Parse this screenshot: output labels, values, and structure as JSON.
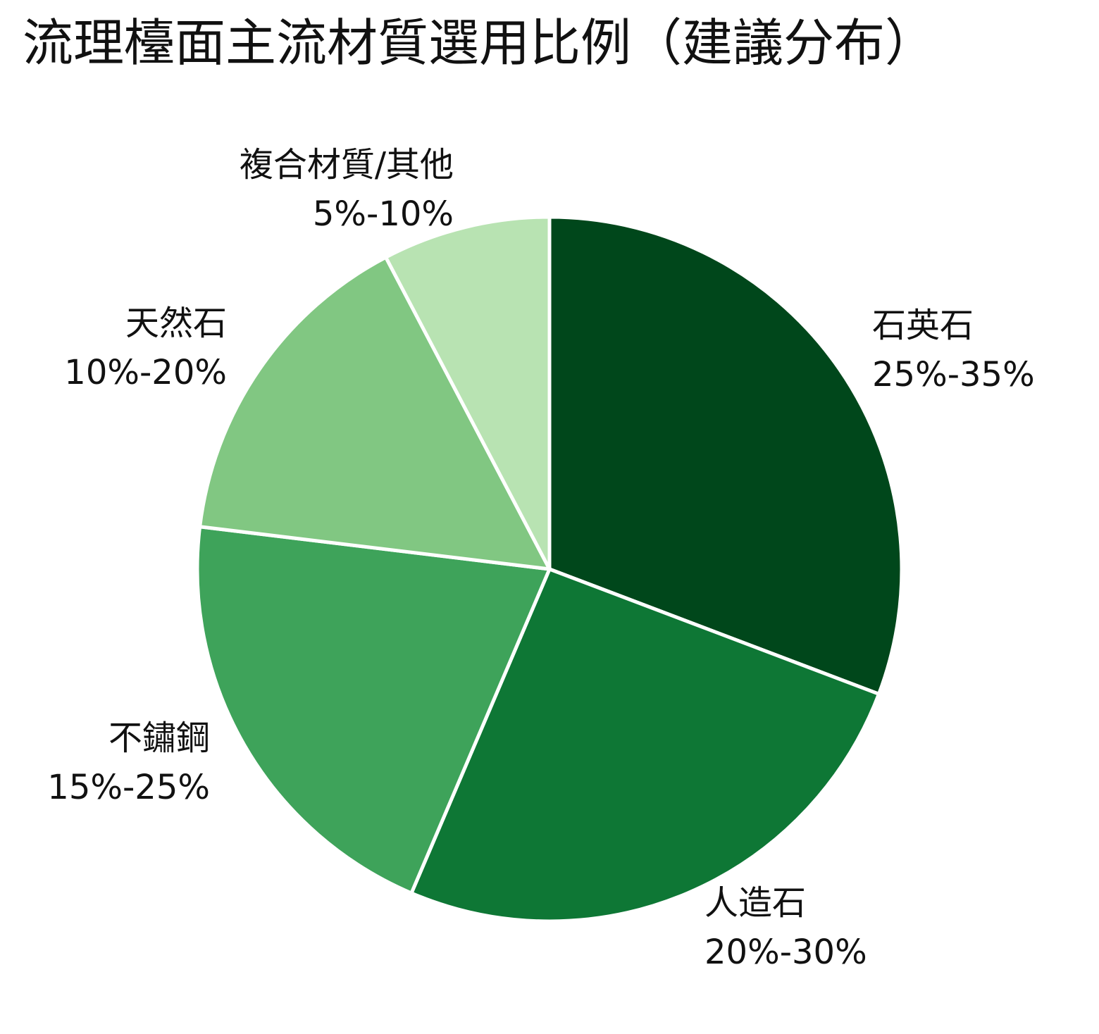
{
  "chart_data": {
    "type": "pie",
    "title": "流理檯面主流材質選用比例（建議分布）",
    "start": "12 o'clock",
    "direction": "clockwise",
    "slices": [
      {
        "name": "石英石",
        "range": "25%-35%",
        "value": 30,
        "color": "#00471b"
      },
      {
        "name": "人造石",
        "range": "20%-30%",
        "value": 25,
        "color": "#0e7735"
      },
      {
        "name": "不鏽鋼",
        "range": "15%-25%",
        "value": 20,
        "color": "#3ea35a"
      },
      {
        "name": "天然石",
        "range": "10%-20%",
        "value": 15,
        "color": "#81c782"
      },
      {
        "name": "複合材質/其他",
        "range": "5%-10%",
        "value": 7.5,
        "color": "#b8e3b2"
      }
    ],
    "slice_border_color": "#ffffff"
  }
}
